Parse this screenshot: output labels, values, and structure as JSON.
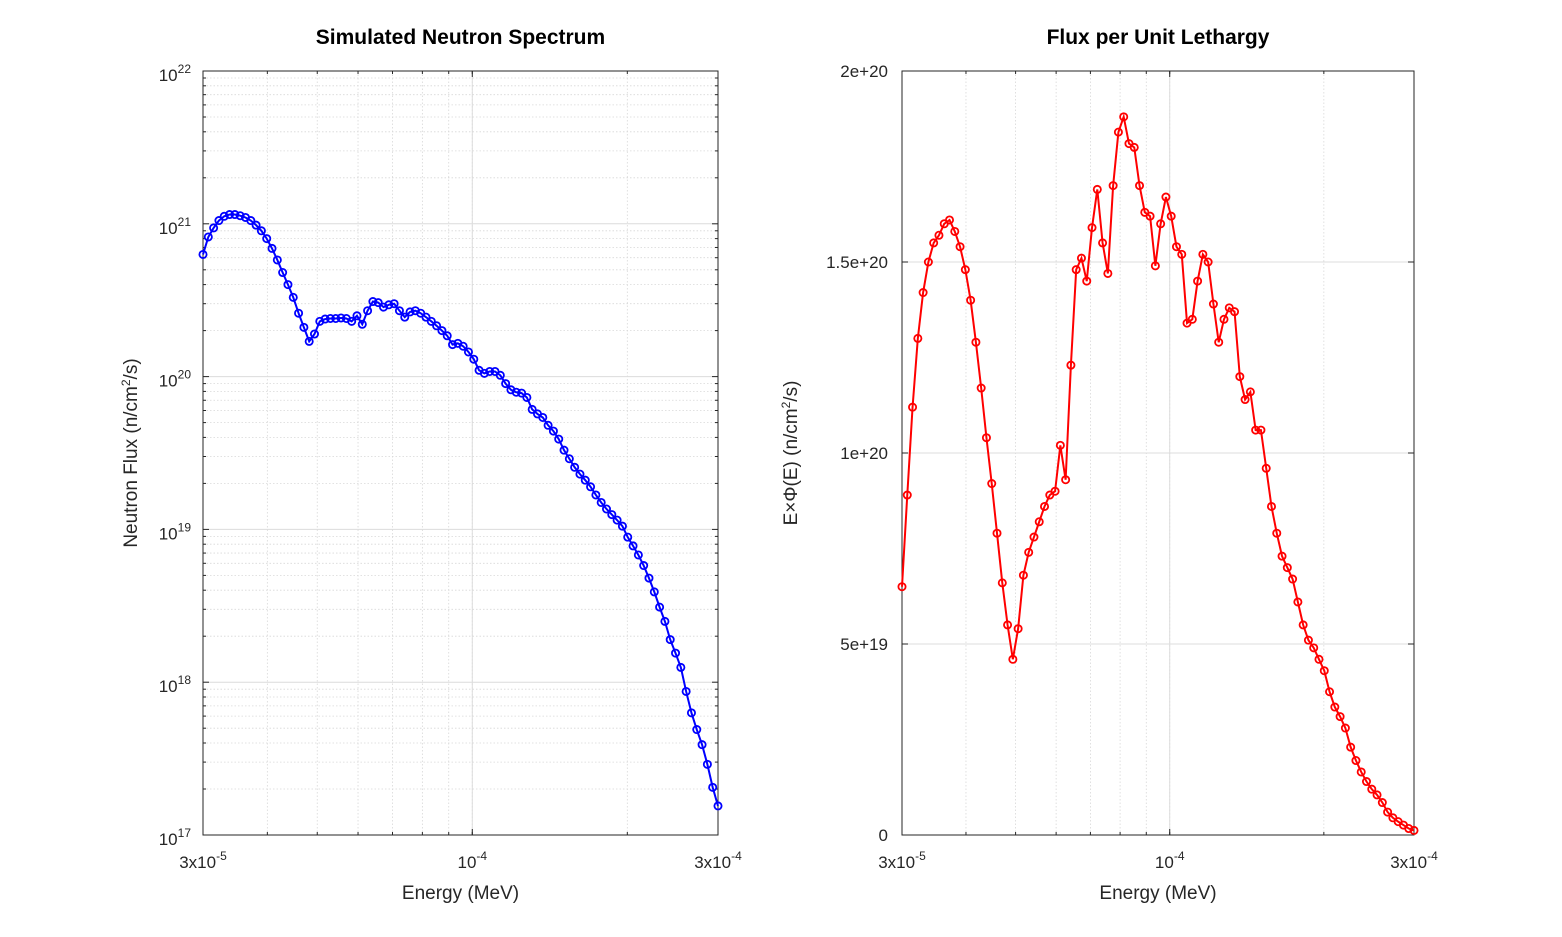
{
  "chart_data": [
    {
      "type": "line",
      "title": "Simulated Neutron Spectrum",
      "xlabel": "Energy (MeV)",
      "ylabel": {
        "pre": "Neutron Flux (n/cm",
        "sup": "2",
        "post": "/s)"
      },
      "xscale": "log",
      "yscale": "log",
      "xlim": [
        3e-05,
        0.0003
      ],
      "ylim": [
        1e+17,
        1e+22
      ],
      "xticks": [
        {
          "value": 3e-05,
          "mant": "3x10",
          "exp": "-5"
        },
        {
          "value": 0.0001,
          "mant": "10",
          "exp": "-4"
        },
        {
          "value": 0.0003,
          "mant": "3x10",
          "exp": "-4"
        }
      ],
      "yticks": [
        {
          "value": 1e+17,
          "mant": "10",
          "exp": "17"
        },
        {
          "value": 1e+18,
          "mant": "10",
          "exp": "18"
        },
        {
          "value": 1e+19,
          "mant": "10",
          "exp": "19"
        },
        {
          "value": 1e+20,
          "mant": "10",
          "exp": "20"
        },
        {
          "value": 1e+21,
          "mant": "10",
          "exp": "21"
        },
        {
          "value": 1e+22,
          "mant": "10",
          "exp": "22"
        }
      ],
      "grid": true,
      "color": "#0000ff",
      "marker": "circle",
      "y": [
        6.3e+20,
        8.2e+20,
        9.4e+20,
        1.05e+21,
        1.12e+21,
        1.15e+21,
        1.15e+21,
        1.13e+21,
        1.1e+21,
        1.05e+21,
        9.8e+20,
        9e+20,
        8e+20,
        6.9e+20,
        5.8e+20,
        4.8e+20,
        4e+20,
        3.3e+20,
        2.6e+20,
        2.1e+20,
        1.7e+20,
        1.9e+20,
        2.3e+20,
        2.38e+20,
        2.4e+20,
        2.4e+20,
        2.42e+20,
        2.4e+20,
        2.3e+20,
        2.5e+20,
        2.2e+20,
        2.7e+20,
        3.1e+20,
        3.05e+20,
        2.85e+20,
        2.95e+20,
        3e+20,
        2.7e+20,
        2.45e+20,
        2.65e+20,
        2.7e+20,
        2.6e+20,
        2.45e+20,
        2.3e+20,
        2.15e+20,
        2e+20,
        1.85e+20,
        1.62e+20,
        1.65e+20,
        1.58e+20,
        1.45e+20,
        1.3e+20,
        1.1e+20,
        1.05e+20,
        1.08e+20,
        1.08e+20,
        1.02e+20,
        9e+19,
        8.2e+19,
        7.9e+19,
        7.8e+19,
        7.3e+19,
        6.1e+19,
        5.7e+19,
        5.4e+19,
        4.8e+19,
        4.4e+19,
        3.9e+19,
        3.3e+19,
        2.9e+19,
        2.55e+19,
        2.3e+19,
        2.1e+19,
        1.9e+19,
        1.68e+19,
        1.5e+19,
        1.36e+19,
        1.25e+19,
        1.15e+19,
        1.05e+19,
        8.9e+18,
        7.8e+18,
        6.8e+18,
        5.8e+18,
        4.8e+18,
        3.9e+18,
        3.1e+18,
        2.5e+18,
        1.9e+18,
        1.55e+18,
        1.25e+18,
        8.7e+17,
        6.3e+17,
        4.9e+17,
        3.9e+17,
        2.9e+17,
        2.05e+17,
        1.55e+17
      ]
    },
    {
      "type": "line",
      "title": "Flux per Unit Lethargy",
      "xlabel": "Energy (MeV)",
      "ylabel": {
        "pre": "E×Φ(E) (n/cm",
        "sup": "2",
        "post": "/s)"
      },
      "xscale": "log",
      "yscale": "linear",
      "xlim": [
        3e-05,
        0.0003
      ],
      "ylim": [
        0,
        2e+20
      ],
      "xticks": [
        {
          "value": 3e-05,
          "mant": "3x10",
          "exp": "-5"
        },
        {
          "value": 0.0001,
          "mant": "10",
          "exp": "-4"
        },
        {
          "value": 0.0003,
          "mant": "3x10",
          "exp": "-4"
        }
      ],
      "yticks": [
        {
          "value": 0,
          "label": "0"
        },
        {
          "value": 5e+19,
          "label": "5e+19"
        },
        {
          "value": 1e+20,
          "label": "1e+20"
        },
        {
          "value": 1.5e+20,
          "label": "1.5e+20"
        },
        {
          "value": 2e+20,
          "label": "2e+20"
        }
      ],
      "grid": true,
      "color": "#ff0000",
      "marker": "circle",
      "y": [
        6.5e+19,
        8.9e+19,
        1.12e+20,
        1.3e+20,
        1.42e+20,
        1.5e+20,
        1.55e+20,
        1.57e+20,
        1.6e+20,
        1.61e+20,
        1.58e+20,
        1.54e+20,
        1.48e+20,
        1.4e+20,
        1.29e+20,
        1.17e+20,
        1.04e+20,
        9.2e+19,
        7.9e+19,
        6.6e+19,
        5.5e+19,
        4.6e+19,
        5.4e+19,
        6.8e+19,
        7.4e+19,
        7.8e+19,
        8.2e+19,
        8.6e+19,
        8.9e+19,
        9e+19,
        1.02e+20,
        9.3e+19,
        1.23e+20,
        1.48e+20,
        1.51e+20,
        1.45e+20,
        1.59e+20,
        1.69e+20,
        1.55e+20,
        1.47e+20,
        1.7e+20,
        1.84e+20,
        1.88e+20,
        1.81e+20,
        1.8e+20,
        1.7e+20,
        1.63e+20,
        1.62e+20,
        1.49e+20,
        1.6e+20,
        1.67e+20,
        1.62e+20,
        1.54e+20,
        1.52e+20,
        1.34e+20,
        1.35e+20,
        1.45e+20,
        1.52e+20,
        1.5e+20,
        1.39e+20,
        1.29e+20,
        1.35e+20,
        1.38e+20,
        1.37e+20,
        1.2e+20,
        1.14e+20,
        1.16e+20,
        1.06e+20,
        1.06e+20,
        9.6e+19,
        8.6e+19,
        7.9e+19,
        7.3e+19,
        7e+19,
        6.7e+19,
        6.1e+19,
        5.5e+19,
        5.1e+19,
        4.9e+19,
        4.6e+19,
        4.3e+19,
        3.75e+19,
        3.35e+19,
        3.1e+19,
        2.8e+19,
        2.3e+19,
        1.95e+19,
        1.65e+19,
        1.4e+19,
        1.2e+19,
        1.05e+19,
        8.5e+18,
        6e+18,
        4.5e+18,
        3.5e+18,
        2.6e+18,
        1.7e+18,
        1.2e+18
      ]
    }
  ]
}
